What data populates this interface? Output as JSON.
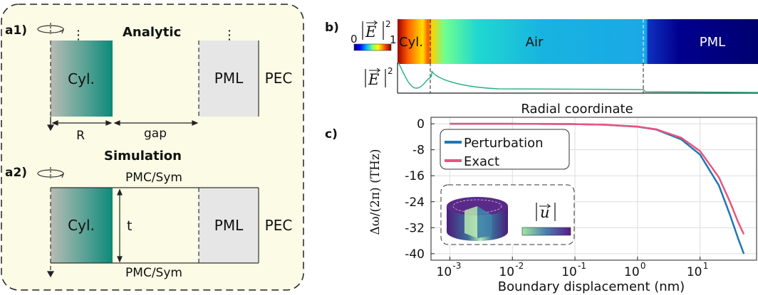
{
  "panel_a": {
    "a1_label": "a1)",
    "a1_title": "Analytic",
    "a2_label": "a2)",
    "a2_title": "Simulation",
    "cyl": "Cyl.",
    "pml": "PML",
    "pec": "PEC",
    "R": "R",
    "gap": "gap",
    "t": "t",
    "pmc_top": "PMC/Sym",
    "pmc_bottom": "PMC/Sym",
    "dots": "⋮"
  },
  "panel_b": {
    "label": "b)",
    "colorbar_min": "0",
    "colorbar_max": "1",
    "field_label": "|E|",
    "field_exp": "2",
    "region_cyl": "Cyl.",
    "region_air": "Air",
    "region_pml": "PML",
    "xlabel": "Radial coordinate"
  },
  "panel_c": {
    "label": "c)",
    "inset_label": "|u|",
    "colors": {
      "perturbation": "#1f77b4",
      "exact": "#e8557f"
    }
  },
  "chart_data": {
    "type": "line",
    "xscale": "log",
    "xlim": [
      0.0005,
      80
    ],
    "ylim": [
      -42,
      2
    ],
    "xlabel": "Boundary displacement (nm)",
    "ylabel": "Δω/(2π) (THz)",
    "xticks": [
      "10-3",
      "10-2",
      "10-1",
      "100",
      "101"
    ],
    "yticks": [
      "0",
      "-8",
      "-16",
      "-24",
      "-32",
      "-40"
    ],
    "ytick_values": [
      0,
      -8,
      -16,
      -24,
      -32,
      -40
    ],
    "grid": true,
    "legend": "top-left",
    "series": [
      {
        "name": "Perturbation",
        "x": [
          0.001,
          0.01,
          0.1,
          0.3,
          1,
          2,
          5,
          10,
          20,
          30,
          40,
          50
        ],
        "y": [
          0,
          0,
          -0.1,
          -0.3,
          -0.9,
          -1.8,
          -4.8,
          -9.5,
          -19,
          -28,
          -35,
          -40
        ]
      },
      {
        "name": "Exact",
        "x": [
          0.001,
          0.01,
          0.1,
          0.3,
          1,
          2,
          5,
          10,
          20,
          30,
          40,
          50
        ],
        "y": [
          0,
          0,
          -0.1,
          -0.3,
          -0.85,
          -1.7,
          -4.3,
          -8.4,
          -16.5,
          -24,
          -30,
          -34
        ]
      }
    ]
  }
}
